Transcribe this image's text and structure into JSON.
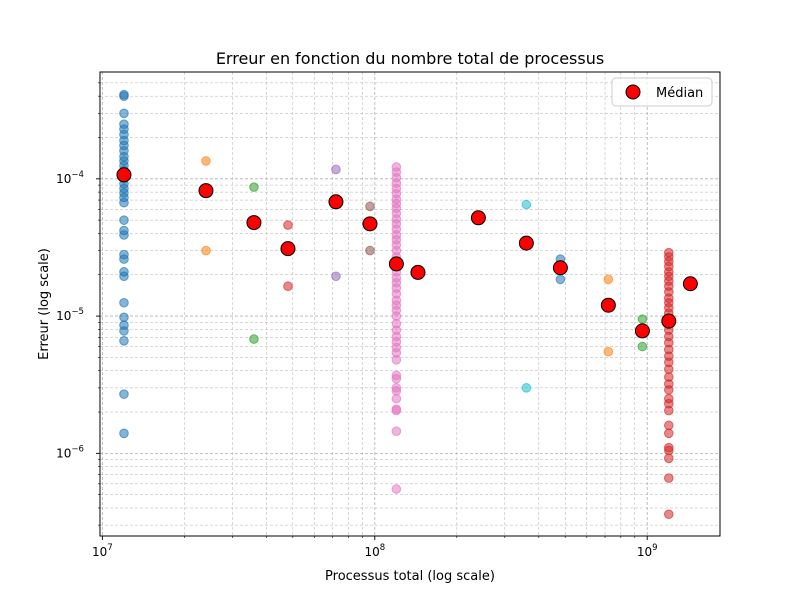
{
  "chart_data": {
    "type": "scatter",
    "title": "Erreur en fonction du nombre total de processus",
    "xlabel": "Processus total (log scale)",
    "ylabel": "Erreur (log scale)",
    "x_scale": "log",
    "y_scale": "log",
    "xlim": [
      9800000,
      1850000000
    ],
    "ylim": [
      2.5e-07,
      0.0006
    ],
    "x_ticks": [
      {
        "value": 10000000,
        "base": "10",
        "exp": "7"
      },
      {
        "value": 100000000,
        "base": "10",
        "exp": "8"
      },
      {
        "value": 1000000000,
        "base": "10",
        "exp": "9"
      }
    ],
    "y_ticks": [
      {
        "value": 1e-06,
        "base": "10",
        "exp": "−6"
      },
      {
        "value": 1e-05,
        "base": "10",
        "exp": "−5"
      },
      {
        "value": 0.0001,
        "base": "10",
        "exp": "−4"
      }
    ],
    "grid": true,
    "legend": {
      "placement": "top-right",
      "entries": [
        "Médian"
      ]
    },
    "groups": [
      {
        "color": "#1f77b4",
        "x": 12000000,
        "y": [
          0.00041,
          0.0004,
          0.0003,
          0.00025,
          0.00023,
          0.00021,
          0.00019,
          0.000175,
          0.00016,
          0.000145,
          0.000135,
          0.000125,
          0.000115,
          0.000108,
          0.0001,
          9.2e-05,
          8.5e-05,
          7.9e-05,
          7.3e-05,
          6.7e-05,
          5e-05,
          4.2e-05,
          3.9e-05,
          2.8e-05,
          2.6e-05,
          2.1e-05,
          1.95e-05,
          1.25e-05,
          9.8e-06,
          8.6e-06,
          7.8e-06,
          6.6e-06,
          2.7e-06,
          1.4e-06
        ]
      },
      {
        "color": "#ff7f0e",
        "x": 24000000,
        "y": [
          0.000135,
          3e-05
        ]
      },
      {
        "color": "#2ca02c",
        "x": 36000000,
        "y": [
          8.7e-05,
          6.8e-06
        ]
      },
      {
        "color": "#d62728",
        "x": 48000000,
        "y": [
          4.6e-05,
          1.65e-05
        ]
      },
      {
        "color": "#9467bd",
        "x": 72000000,
        "y": [
          0.000117,
          1.95e-05
        ]
      },
      {
        "color": "#8c564b",
        "x": 96000000,
        "y": [
          6.3e-05,
          3e-05
        ]
      },
      {
        "color": "#e377c2",
        "x": 120000000,
        "y": [
          0.000122,
          0.000112,
          0.000102,
          9.3e-05,
          8.5e-05,
          7.8e-05,
          7.1e-05,
          6.6e-05,
          6.1e-05,
          5.6e-05,
          5.1e-05,
          4.7e-05,
          4.3e-05,
          3.9e-05,
          3.6e-05,
          3.3e-05,
          3e-05,
          2.7e-05,
          2.5e-05,
          2.3e-05,
          2.1e-05,
          1.9e-05,
          1.75e-05,
          1.6e-05,
          1.45e-05,
          1.3e-05,
          1.2e-05,
          1.1e-05,
          1e-05,
          8.8e-06,
          7.9e-06,
          7.1e-06,
          6.5e-06,
          5.9e-06,
          5.4e-06,
          4.8e-06,
          3.7e-06,
          3.5e-06,
          3e-06,
          2.85e-06,
          2.5e-06,
          2.1e-06,
          2.05e-06,
          1.45e-06,
          5.5e-07
        ]
      },
      {
        "color": "#17becf",
        "x": 360000000,
        "y": [
          6.5e-05,
          3e-06
        ]
      },
      {
        "color": "#1f77b4",
        "x": 480000000,
        "y": [
          2.6e-05,
          1.85e-05
        ]
      },
      {
        "color": "#ff7f0e",
        "x": 720000000,
        "y": [
          1.85e-05,
          5.5e-06
        ]
      },
      {
        "color": "#2ca02c",
        "x": 960000000,
        "y": [
          9.5e-06,
          6e-06
        ]
      },
      {
        "color": "#d62728",
        "x": 1200000000,
        "y": [
          2.9e-05,
          2.7e-05,
          2.5e-05,
          2.3e-05,
          2.1e-05,
          1.95e-05,
          1.8e-05,
          1.65e-05,
          1.5e-05,
          1.35e-05,
          1.25e-05,
          1.15e-05,
          1.05e-05,
          9.5e-06,
          8.7e-06,
          7.9e-06,
          7.1e-06,
          6.4e-06,
          5.7e-06,
          5.1e-06,
          4.6e-06,
          4.1e-06,
          3.6e-06,
          3.2e-06,
          2.9e-06,
          2.5e-06,
          2.3e-06,
          2.05e-06,
          1.6e-06,
          1.4e-06,
          1.1e-06,
          1.05e-06,
          9.2e-07,
          6.6e-07,
          3.6e-07
        ]
      }
    ],
    "median": {
      "name": "Médian",
      "color": "#ff0000",
      "edge": "#000000",
      "x": [
        12000000,
        24000000,
        36000000,
        48000000,
        72000000,
        96000000,
        120000000,
        144000000,
        240000000,
        360000000,
        480000000,
        720000000,
        960000000,
        1200000000,
        1440000000
      ],
      "y": [
        0.000107,
        8.2e-05,
        4.8e-05,
        3.1e-05,
        6.8e-05,
        4.7e-05,
        2.4e-05,
        2.08e-05,
        5.2e-05,
        3.4e-05,
        2.25e-05,
        1.2e-05,
        7.8e-06,
        9.2e-06,
        1.72e-05
      ]
    }
  }
}
